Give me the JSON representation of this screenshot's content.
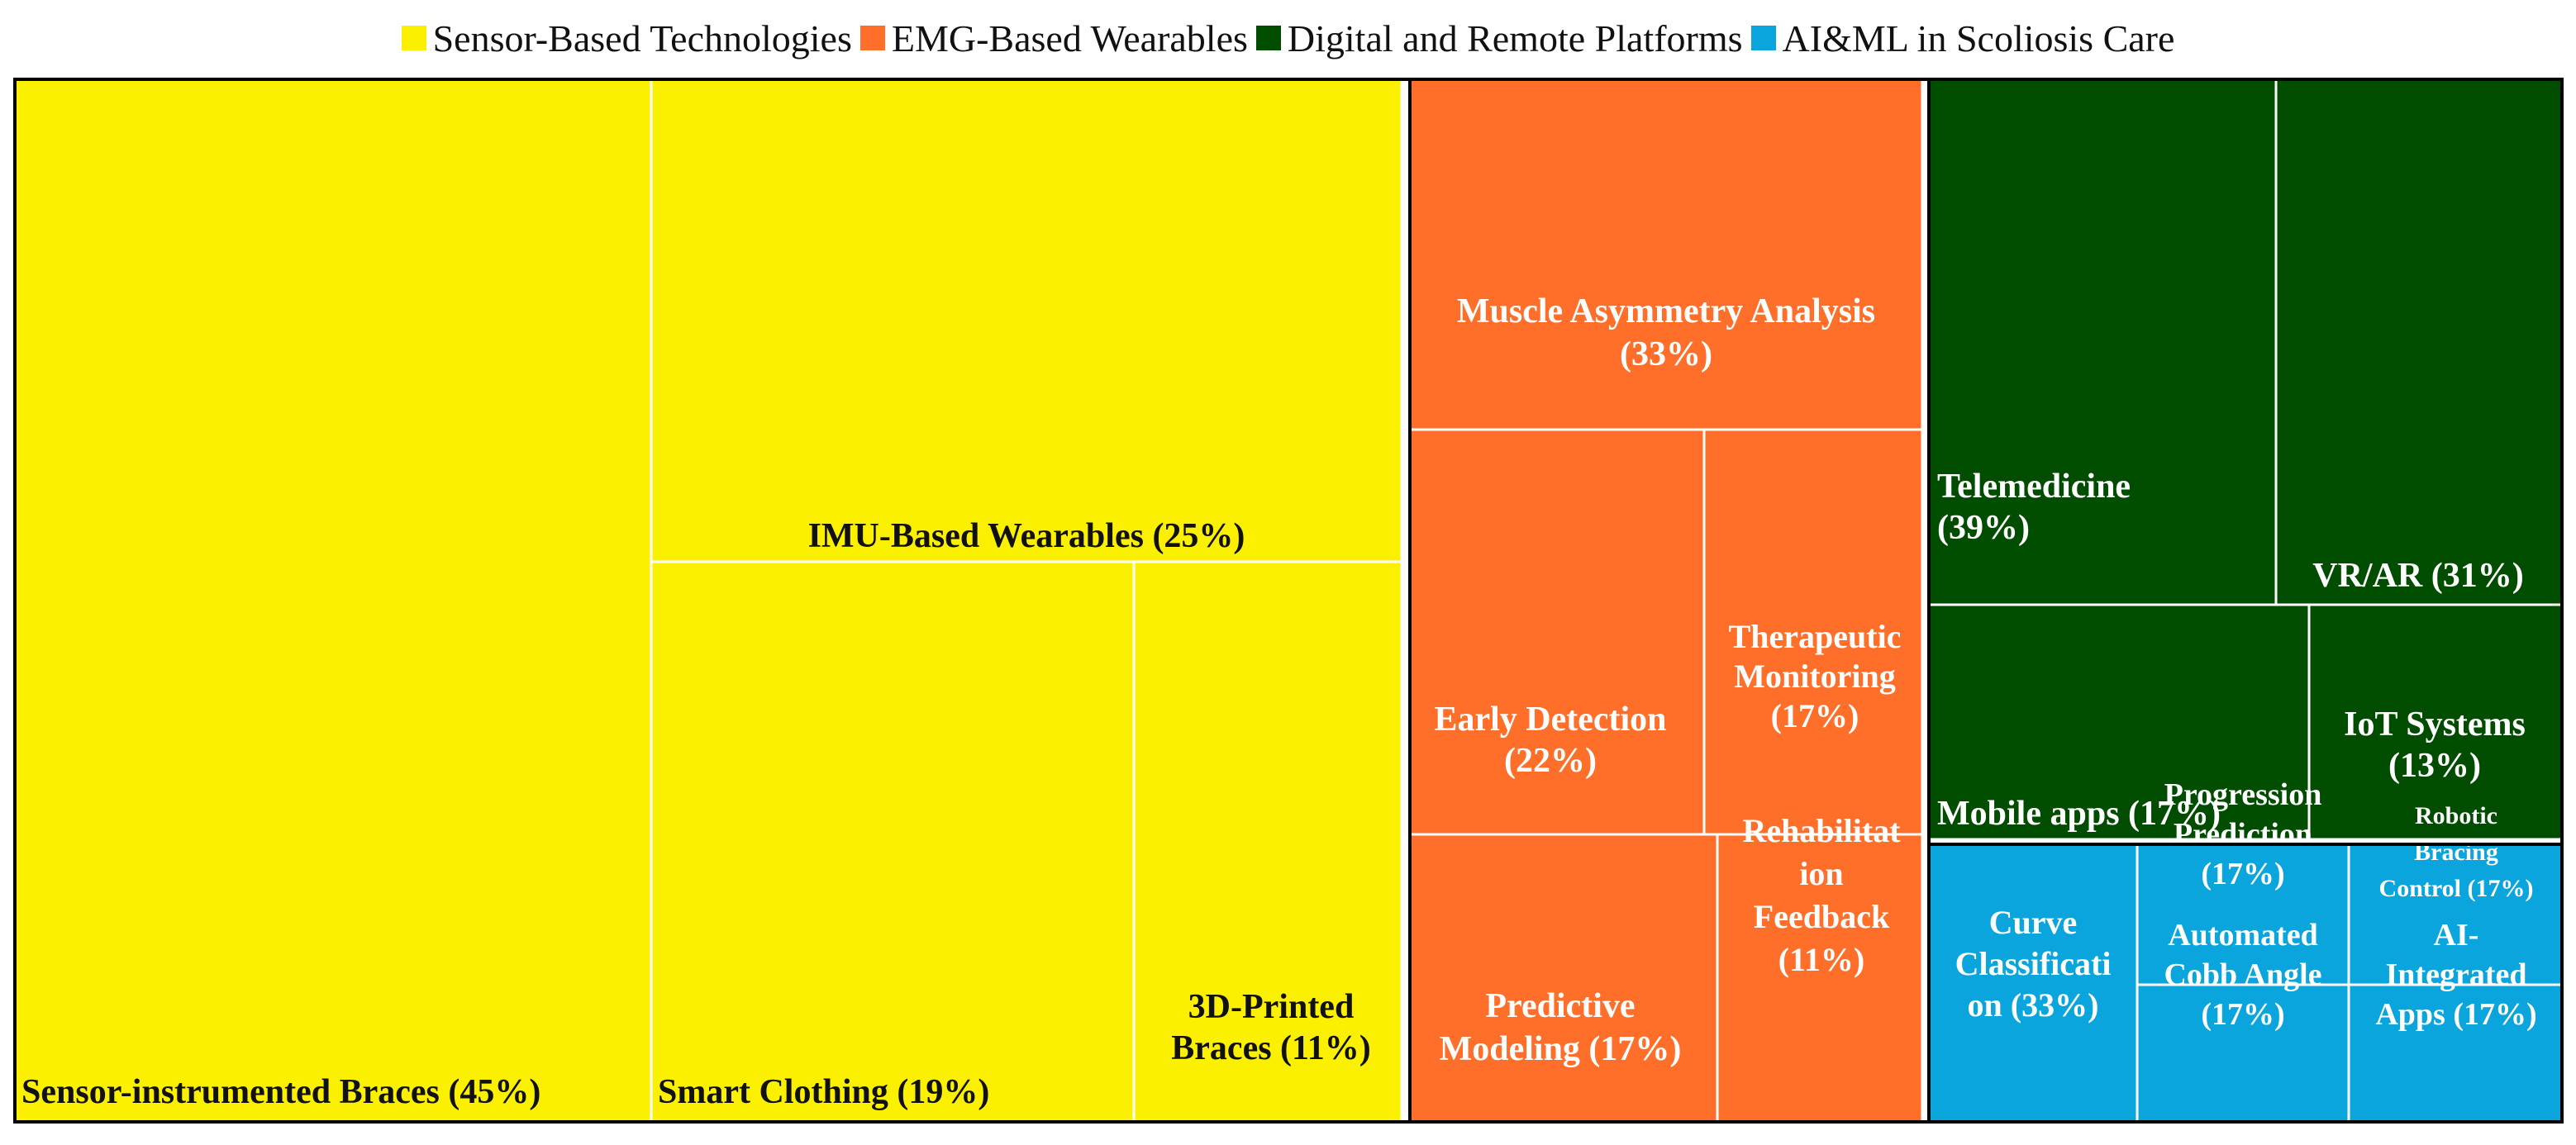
{
  "chart_data": {
    "type": "treemap",
    "legend": [
      {
        "name": "Sensor-Based Technologies",
        "color": "#FAF000"
      },
      {
        "name": "EMG-Based Wearables",
        "color": "#FF6F2A"
      },
      {
        "name": "Digital and Remote Platforms",
        "color": "#004D00"
      },
      {
        "name": "AI&ML in Scoliosis Care",
        "color": "#0AA5DD"
      }
    ],
    "groups": [
      {
        "name": "Sensor-Based Technologies",
        "color": "#FAF000",
        "text_color": "#111111",
        "children": [
          {
            "lines": [
              "Sensor-instrumented Braces (45%)"
            ],
            "percent": 45
          },
          {
            "lines": [
              "IMU-Based Wearables (25%)"
            ],
            "percent": 25
          },
          {
            "lines": [
              "Smart Clothing (19%)"
            ],
            "percent": 19
          },
          {
            "lines": [
              "3D-Printed",
              "Braces (11%)"
            ],
            "percent": 11
          }
        ]
      },
      {
        "name": "EMG-Based Wearables",
        "color": "#FF6F2A",
        "text_color": "#ffffff",
        "children": [
          {
            "lines": [
              "Muscle Asymmetry Analysis",
              "(33%)"
            ],
            "percent": 33
          },
          {
            "lines": [
              "Early Detection",
              "(22%)"
            ],
            "percent": 22
          },
          {
            "lines": [
              "Therapeutic",
              "Monitoring",
              "(17%)"
            ],
            "percent": 17
          },
          {
            "lines": [
              "Predictive",
              "Modeling (17%)"
            ],
            "percent": 17
          },
          {
            "lines": [
              "Rehabilitat",
              "ion",
              "Feedback",
              "(11%)"
            ],
            "percent": 11
          }
        ]
      },
      {
        "name": "Digital and Remote Platforms",
        "color": "#004D00",
        "text_color": "#ffffff",
        "children": [
          {
            "lines": [
              "Telemedicine",
              "(39%)"
            ],
            "percent": 39
          },
          {
            "lines": [
              "VR/AR (31%)"
            ],
            "percent": 31
          },
          {
            "lines": [
              "Mobile apps (17%)"
            ],
            "percent": 17
          },
          {
            "lines": [
              "IoT Systems",
              "(13%)"
            ],
            "percent": 13
          }
        ]
      },
      {
        "name": "AI&ML in Scoliosis Care",
        "color": "#0AA5DD",
        "text_color": "#ffffff",
        "children": [
          {
            "lines": [
              "Curve",
              "Classificati",
              "on (33%)"
            ],
            "percent": 33
          },
          {
            "lines": [
              "Progression",
              "Prediction",
              "(17%)"
            ],
            "percent": 17
          },
          {
            "lines": [
              "Robotic",
              "Bracing",
              "Control (17%)"
            ],
            "percent": 17
          },
          {
            "lines": [
              "Automated",
              "Cobb Angle",
              "(17%)"
            ],
            "percent": 17
          },
          {
            "lines": [
              "AI-",
              "Integrated",
              "Apps (17%)"
            ],
            "percent": 17
          }
        ]
      }
    ]
  }
}
